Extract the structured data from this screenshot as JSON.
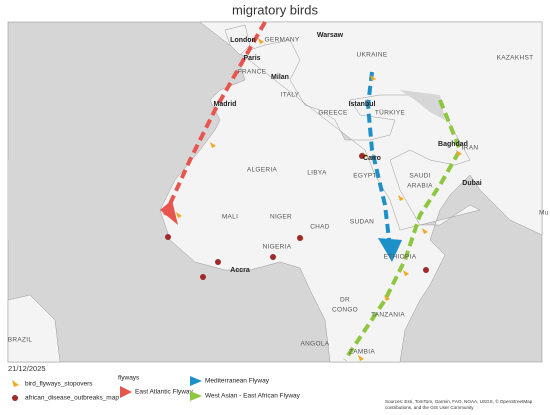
{
  "title": "migratory birds",
  "map_labels": [
    "London",
    "GERMANY",
    "Warsaw",
    "UKRAINE",
    "KAZAKHST",
    "Paris",
    "FRANCE",
    "Milan",
    "ITALY",
    "Madrid",
    "Istanbul",
    "GREECE",
    "TÜRKIYE",
    "Baghdad",
    "IRAN",
    "Cairo",
    "ALGERIA",
    "LIBYA",
    "EGYPT",
    "SAUDI",
    "ARABIA",
    "Dubai",
    "MALI",
    "NIGER",
    "CHAD",
    "SUDAN",
    "Mu",
    "NIGERIA",
    "ETHIOPIA",
    "Accra",
    "DR",
    "CONGO",
    "TANZANIA",
    "ANGOLA",
    "ZAMBIA",
    "BRAZIL"
  ],
  "date": "21/12/2025",
  "legend": {
    "stopovers": "bird_flyways_stopovers",
    "outbreaks": "african_disease_outbreaks_map",
    "flyways_title": "flyways",
    "flyways": [
      "East Atlantic Flyway",
      "Mediterranean Flyway",
      "West Asian - East African Flyway"
    ]
  },
  "attribution": [
    "Sources: Esri, TomTom, Garmin, FAO, NOAA, USGS, © OpenStreetMap",
    "contributions, and the GIS User Community"
  ]
}
